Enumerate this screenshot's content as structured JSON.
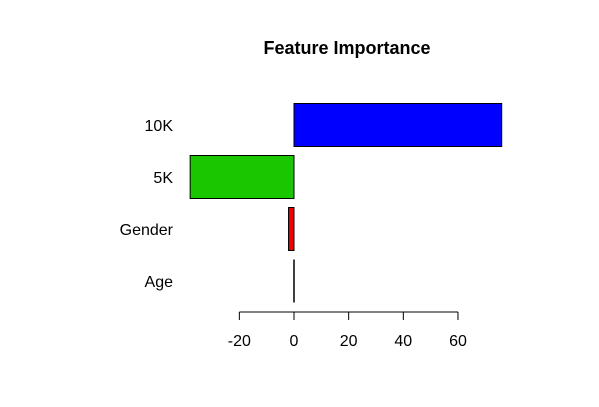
{
  "chart_data": {
    "type": "bar",
    "orientation": "horizontal",
    "title": "Feature Importance",
    "xlabel": "",
    "ylabel": "",
    "categories": [
      "10K",
      "5K",
      "Gender",
      "Age"
    ],
    "values": [
      76,
      -38,
      -2,
      0
    ],
    "colors": [
      "#0000ff",
      "#19c600",
      "#ee0000",
      "#000000"
    ],
    "xlim": [
      -39,
      77
    ],
    "xticks": [
      -20,
      0,
      20,
      40,
      60
    ],
    "grid": false,
    "legend": "none"
  }
}
